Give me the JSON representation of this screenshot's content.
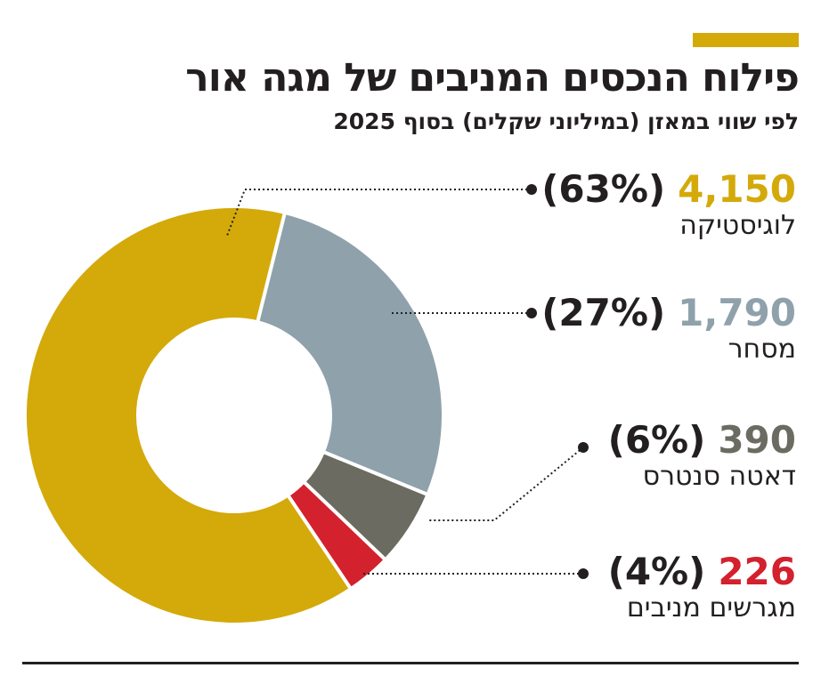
{
  "title": "פילוח הנכסים המניבים של מגה אור",
  "subtitle": "לפי שווי במאזן (במיליוני שקלים) בסוף 2025",
  "chart_data": {
    "type": "pie",
    "donut": true,
    "title": "פילוח הנכסים המניבים של מגה אור",
    "subtitle": "לפי שווי במאזן (במיליוני שקלים) בסוף 2025",
    "slices": [
      {
        "label": "לוגיסטיקה",
        "value": 4150,
        "value_label": "4,150",
        "percent_label": "(63%)",
        "color": "#d4a90a"
      },
      {
        "label": "מסחר",
        "value": 1790,
        "value_label": "1,790",
        "percent_label": "(27%)",
        "color": "#8fa1ab"
      },
      {
        "label": "דאטה סנטרס",
        "value": 390,
        "value_label": "390",
        "percent_label": "(6%)",
        "color": "#6b6b61"
      },
      {
        "label": "מגרשים מניבים",
        "value": 226,
        "value_label": "226",
        "percent_label": "(4%)",
        "color": "#d3212d"
      }
    ]
  }
}
